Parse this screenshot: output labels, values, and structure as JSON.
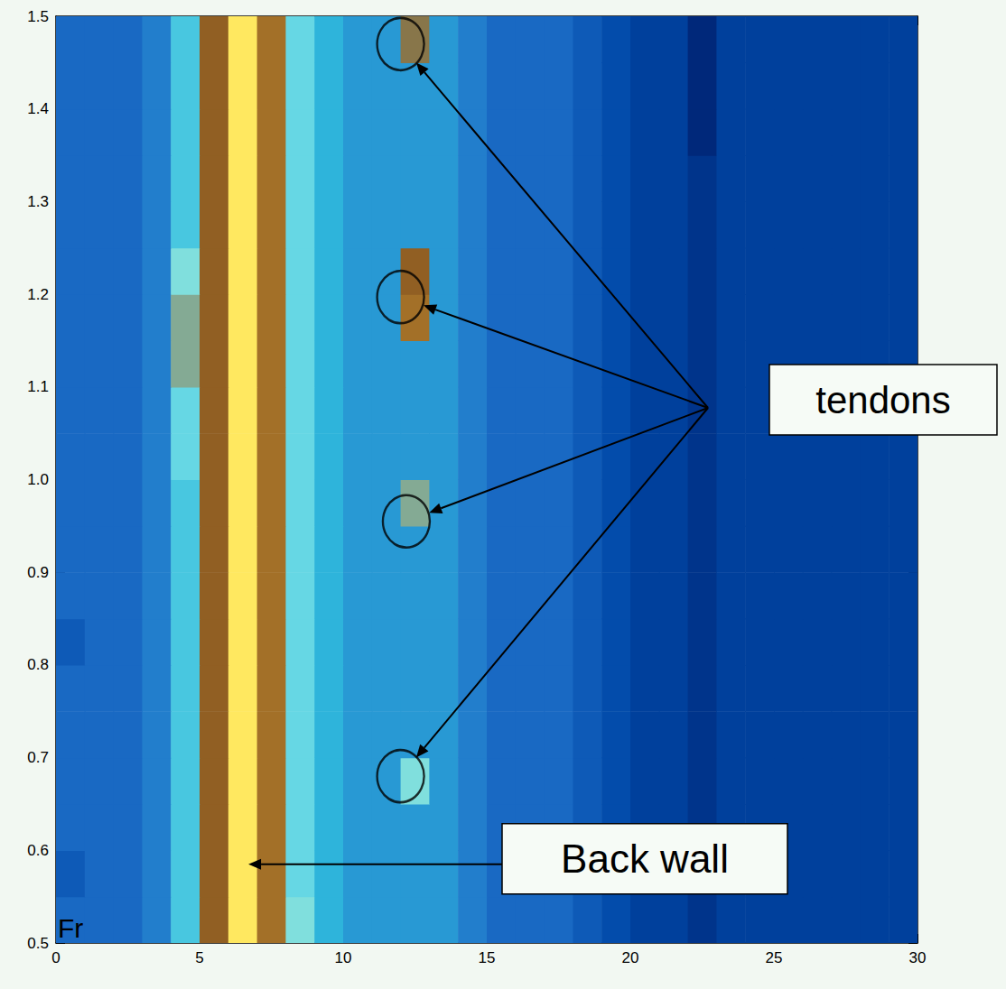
{
  "chart_data": {
    "type": "heatmap",
    "xlim": [
      0,
      30
    ],
    "xticks": [
      0,
      5,
      10,
      15,
      20,
      25,
      30
    ],
    "ylim": [
      0.5,
      1.5
    ],
    "yticks": [
      0.5,
      0.6,
      0.7,
      0.8,
      0.9,
      {
        "value": 1,
        "label": "1.0"
      },
      1.1,
      1.2,
      1.3,
      1.4,
      1.5
    ],
    "grid": false,
    "cells": {
      "x": [
        0,
        1,
        2,
        3,
        4,
        5,
        6,
        7,
        8,
        9,
        10,
        11,
        12,
        13,
        14,
        15,
        16,
        17,
        18,
        19,
        20,
        21,
        22,
        23,
        24,
        25,
        26,
        27,
        28,
        29,
        30
      ],
      "y": [
        0.5,
        0.55,
        0.6,
        0.65,
        0.7,
        0.75,
        0.8,
        0.85,
        0.9,
        0.95,
        1.0,
        1.05,
        1.1,
        1.15,
        1.2,
        1.25,
        1.3,
        1.35,
        1.4,
        1.45,
        1.5
      ],
      "values": [
        [
          3,
          3,
          3,
          3.5,
          5,
          7.5,
          10,
          8,
          6,
          4.5,
          4,
          4,
          4,
          4,
          3.5,
          3,
          3,
          3,
          2.5,
          2,
          1.5,
          1.5,
          1,
          1.5,
          1.5,
          1.5,
          1.5,
          1.5,
          1.5,
          1.5
        ],
        [
          2.5,
          3,
          3,
          3.5,
          5,
          7.5,
          10,
          8,
          5.5,
          4.5,
          4,
          4,
          4,
          4,
          3.5,
          3,
          3,
          3,
          2.5,
          2,
          1.5,
          1.5,
          1,
          1.5,
          1.5,
          1.5,
          1.5,
          1.5,
          1.5,
          1.5
        ],
        [
          3,
          3,
          3,
          3.5,
          5,
          7.5,
          10,
          8,
          5.5,
          4.5,
          4,
          4,
          4,
          4,
          3.5,
          3,
          3,
          3,
          2.5,
          2,
          1.5,
          1.5,
          1,
          1.5,
          1.5,
          1.5,
          1.5,
          1.5,
          1.5,
          1.5
        ],
        [
          3,
          3,
          3,
          3.5,
          5,
          7.5,
          10,
          8,
          5.5,
          4.5,
          4,
          4,
          6,
          4,
          3.5,
          3,
          3,
          3,
          2.5,
          2,
          1.5,
          1.5,
          1,
          1.5,
          1.5,
          1.5,
          1.5,
          1.5,
          1.5,
          1.5
        ],
        [
          3,
          3,
          3,
          3.5,
          5,
          7.5,
          10,
          8,
          5.5,
          4.5,
          4,
          4,
          4,
          4,
          3.5,
          3,
          3,
          3,
          2.5,
          2,
          1.5,
          1.5,
          1,
          1.5,
          1.5,
          1.5,
          1.5,
          1.5,
          1.5,
          1.5
        ],
        [
          3,
          3,
          3,
          3.5,
          5,
          7.5,
          10,
          8,
          5.5,
          4.5,
          4,
          4,
          4,
          4,
          3.5,
          3,
          3,
          3,
          2.5,
          2,
          1.5,
          1.5,
          1,
          1.5,
          1.5,
          1.5,
          1.5,
          1.5,
          1.5,
          1.5
        ],
        [
          2.5,
          3,
          3,
          3.5,
          5,
          7.5,
          10,
          8,
          5.5,
          4.5,
          4,
          4,
          4,
          4,
          3.5,
          3,
          3,
          3,
          2.5,
          2,
          1.5,
          1.5,
          1,
          1.5,
          1.5,
          1.5,
          1.5,
          1.5,
          1.5,
          1.5
        ],
        [
          3,
          3,
          3,
          3.5,
          5,
          7.5,
          10,
          8,
          5.5,
          4.5,
          4,
          4,
          4,
          4,
          3.5,
          3,
          3,
          3,
          2.5,
          2,
          1.5,
          1.5,
          1,
          1.5,
          1.5,
          1.5,
          1.5,
          1.5,
          1.5,
          1.5
        ],
        [
          3,
          3,
          3,
          3.5,
          5,
          7.5,
          10,
          8,
          5.5,
          4.5,
          4,
          4,
          4,
          4,
          3.5,
          3,
          3,
          3,
          2.5,
          2,
          1.5,
          1.5,
          1,
          1.5,
          1.5,
          1.5,
          1.5,
          1.5,
          1.5,
          1.5
        ],
        [
          3,
          3,
          3,
          3.5,
          5,
          7.5,
          10,
          8,
          5.5,
          4.5,
          4,
          4,
          6.5,
          4,
          3.5,
          3,
          3,
          3,
          2.5,
          2,
          1.5,
          1.5,
          1,
          1.5,
          1.5,
          1.5,
          1.5,
          1.5,
          1.5,
          1.5
        ],
        [
          3,
          3,
          3,
          3.5,
          5.5,
          7.5,
          10,
          8,
          5.5,
          4.5,
          4,
          4,
          4,
          4,
          3.5,
          3,
          3,
          3,
          2.5,
          2,
          1.5,
          1.5,
          1,
          1.5,
          1.5,
          1.5,
          1.5,
          1.5,
          1.5,
          1.5
        ],
        [
          3,
          3,
          3,
          3.5,
          5.5,
          7.5,
          10,
          8,
          5.5,
          4.5,
          4,
          4,
          4,
          4,
          3.5,
          3,
          3,
          3,
          2.5,
          2,
          1.5,
          1.5,
          1,
          1.5,
          1.5,
          1.5,
          1.5,
          1.5,
          1.5,
          1.5
        ],
        [
          3,
          3,
          3,
          3.5,
          6.5,
          7.5,
          10,
          8,
          5.5,
          4.5,
          4,
          4,
          4,
          4,
          3.5,
          3,
          3,
          3,
          2.5,
          2,
          1.5,
          1.5,
          1,
          1.5,
          1.5,
          1.5,
          1.5,
          1.5,
          1.5,
          1.5
        ],
        [
          3,
          3,
          3,
          3.5,
          6.5,
          7.5,
          10,
          8,
          5.5,
          4.5,
          4,
          4,
          8,
          4,
          3.5,
          3,
          3,
          3,
          2.5,
          2,
          1.5,
          1.5,
          1,
          1.5,
          1.5,
          1.5,
          1.5,
          1.5,
          1.5,
          1.5
        ],
        [
          3,
          3,
          3,
          3.5,
          6,
          7.5,
          10,
          8,
          5.5,
          4.5,
          4,
          4,
          7.5,
          4,
          3.5,
          3,
          3,
          3,
          2.5,
          2,
          1.5,
          1.5,
          1,
          1.5,
          1.5,
          1.5,
          1.5,
          1.5,
          1.5,
          1.5
        ],
        [
          3,
          3,
          3,
          3.5,
          5,
          7.5,
          10,
          8,
          5.5,
          4.5,
          4,
          4,
          4,
          4,
          3.5,
          3,
          3,
          3,
          2.5,
          2,
          1.5,
          1.5,
          1,
          1.5,
          1.5,
          1.5,
          1.5,
          1.5,
          1.5,
          1.5
        ],
        [
          3,
          3,
          3,
          3.5,
          5,
          7.5,
          10,
          8,
          5.5,
          4.5,
          4,
          4,
          4,
          4,
          3.5,
          3,
          3,
          3,
          2.5,
          2,
          1.5,
          1.5,
          1,
          1.5,
          1.5,
          1.5,
          1.5,
          1.5,
          1.5,
          1.5
        ],
        [
          3,
          3,
          3,
          3.5,
          5,
          7.5,
          10,
          8,
          5.5,
          4.5,
          4,
          4,
          4,
          4,
          3.5,
          3,
          3,
          3,
          2.5,
          2,
          1.5,
          1.5,
          0.5,
          1.5,
          1.5,
          1.5,
          1.5,
          1.5,
          1.5,
          1.5
        ],
        [
          3,
          3,
          3,
          3.5,
          5,
          7.5,
          10,
          8,
          5.5,
          4.5,
          4,
          4,
          4,
          4,
          3.5,
          3,
          3,
          3,
          2.5,
          2,
          1.5,
          1.5,
          0.5,
          1.5,
          1.5,
          1.5,
          1.5,
          1.5,
          1.5,
          1.5
        ],
        [
          3,
          3,
          3,
          3.5,
          5,
          7.5,
          10,
          8,
          5.5,
          4.5,
          4,
          4,
          7,
          4,
          3.5,
          3,
          3,
          3,
          2.5,
          2,
          1.5,
          1.5,
          0.5,
          1.5,
          1.5,
          1.5,
          1.5,
          1.5,
          1.5,
          1.5
        ]
      ]
    },
    "annotations": [
      {
        "text": "tendons",
        "points": [
          [
            12,
            0.68
          ],
          [
            12.2,
            0.955
          ],
          [
            12,
            1.197
          ],
          [
            12,
            1.47
          ]
        ]
      },
      {
        "text": "Back wall",
        "points": [
          [
            6.7,
            0.585
          ]
        ]
      },
      {
        "text": "Fr"
      }
    ]
  }
}
